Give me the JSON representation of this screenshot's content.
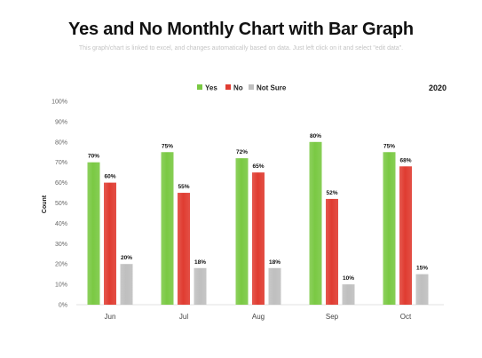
{
  "slide": {
    "title": "Yes and No Monthly Chart with Bar Graph",
    "subtitle": "This graph/chart is linked to excel, and changes automatically based on data. Just left click on it and select \"edit data\"."
  },
  "chart_data": {
    "type": "bar",
    "categories": [
      "Jun",
      "Jul",
      "Aug",
      "Sep",
      "Oct"
    ],
    "series": [
      {
        "name": "Yes",
        "values": [
          70,
          75,
          72,
          80,
          75
        ],
        "color": "#7ac943"
      },
      {
        "name": "No",
        "values": [
          60,
          55,
          65,
          52,
          68
        ],
        "color": "#e03c31"
      },
      {
        "name": "Not Sure",
        "values": [
          20,
          18,
          18,
          10,
          15
        ],
        "color": "#bfbfbf"
      }
    ],
    "ylim": [
      0,
      100
    ],
    "yticks": [
      "0%",
      "10%",
      "20%",
      "30%",
      "40%",
      "50%",
      "60%",
      "70%",
      "80%",
      "90%",
      "100%"
    ],
    "ylabel": "Count",
    "year_label": "2020",
    "value_suffix": "%",
    "legend_position": "top",
    "grid": false
  }
}
